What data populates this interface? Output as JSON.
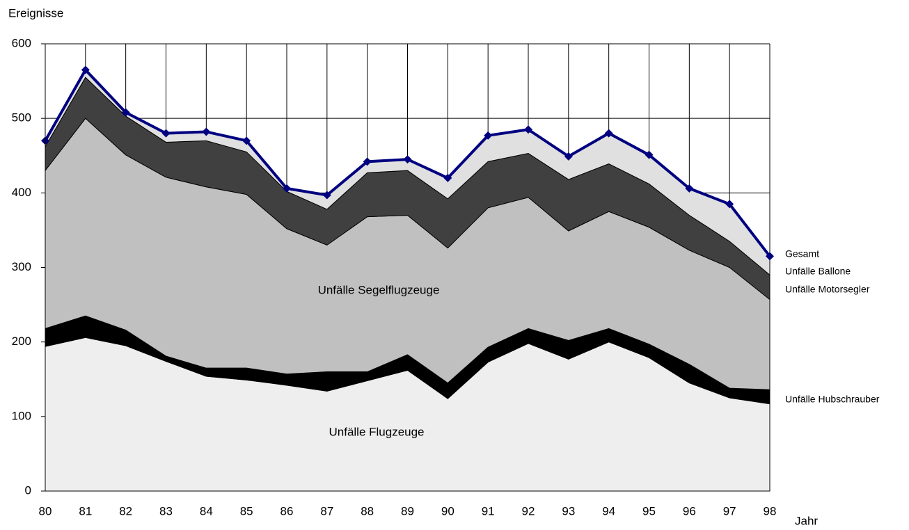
{
  "chart_data": {
    "type": "stacked-area",
    "y_label": "Ereignisse",
    "x_label": "Jahr",
    "categories": [
      "80",
      "81",
      "82",
      "83",
      "84",
      "85",
      "86",
      "87",
      "88",
      "89",
      "90",
      "91",
      "92",
      "93",
      "94",
      "95",
      "96",
      "97",
      "98"
    ],
    "series": [
      {
        "name": "Unfälle Flugzeuge",
        "color": "#eeeeee",
        "values": [
          194,
          206,
          195,
          174,
          154,
          149,
          142,
          134,
          148,
          162,
          124,
          173,
          198,
          177,
          200,
          179,
          145,
          125,
          117
        ]
      },
      {
        "name": "Unfälle Hubschrauber",
        "color": "#000000",
        "values": [
          24,
          29,
          21,
          7,
          11,
          16,
          15,
          26,
          12,
          21,
          21,
          20,
          20,
          25,
          18,
          18,
          25,
          13,
          19
        ]
      },
      {
        "name": "Unfälle Segelflugzeuge",
        "color": "#c0c0c0",
        "values": [
          212,
          265,
          235,
          240,
          243,
          233,
          195,
          170,
          208,
          187,
          181,
          187,
          176,
          147,
          157,
          157,
          153,
          162,
          121
        ]
      },
      {
        "name": "Unfälle Motorsegler",
        "color": "#404040",
        "values": [
          32,
          55,
          52,
          47,
          62,
          57,
          50,
          48,
          59,
          60,
          66,
          62,
          59,
          69,
          64,
          58,
          47,
          35,
          33
        ]
      },
      {
        "name": "Unfälle Ballone",
        "color": "#e0e0e0",
        "values": [
          8,
          10,
          5,
          12,
          12,
          15,
          4,
          19,
          15,
          15,
          28,
          35,
          32,
          31,
          41,
          39,
          36,
          50,
          25
        ]
      },
      {
        "name": "Gesamt",
        "color": "#000080",
        "type": "line",
        "values": [
          470,
          565,
          508,
          480,
          482,
          470,
          406,
          397,
          442,
          445,
          420,
          477,
          485,
          449,
          480,
          451,
          406,
          385,
          315
        ]
      }
    ],
    "ylim": [
      0,
      600
    ],
    "yticks": [
      0,
      100,
      200,
      300,
      400,
      500,
      600
    ],
    "grid": true
  }
}
